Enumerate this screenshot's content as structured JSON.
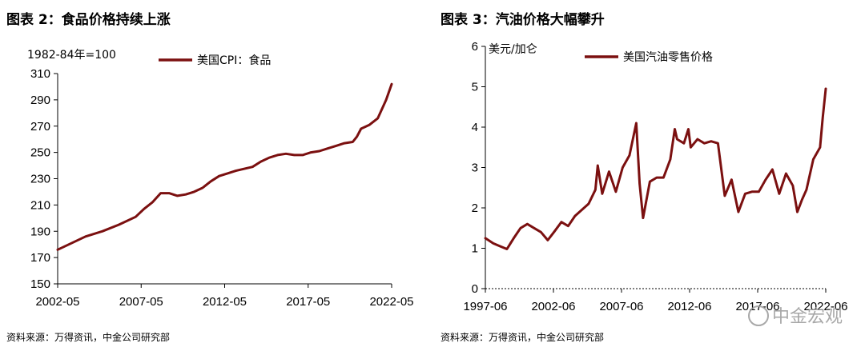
{
  "charts": [
    {
      "title": "图表 2：食品价格持续上涨",
      "source": "资料来源：万得资讯，中金公司研究部",
      "chart_data": {
        "type": "line",
        "unit_label": "1982-84年=100",
        "ylim": [
          150,
          310
        ],
        "yticks": [
          150,
          170,
          190,
          210,
          230,
          250,
          270,
          290,
          310
        ],
        "xlim": [
          2002.33,
          2022.33
        ],
        "xtick_labels": [
          "2002-05",
          "2007-05",
          "2012-05",
          "2017-05",
          "2022-05"
        ],
        "xtick_positions": [
          2002.33,
          2007.33,
          2012.33,
          2017.33,
          2022.33
        ],
        "series": [
          {
            "name": "美国CPI：食品",
            "color": "#7b1010",
            "x": [
              2002.33,
              2003.0,
              2004.0,
              2005.0,
              2006.0,
              2007.0,
              2007.5,
              2008.0,
              2008.5,
              2009.0,
              2009.5,
              2010.0,
              2010.5,
              2011.0,
              2011.5,
              2012.0,
              2012.5,
              2013.0,
              2014.0,
              2014.5,
              2015.0,
              2015.5,
              2016.0,
              2016.5,
              2017.0,
              2017.5,
              2018.0,
              2018.5,
              2019.0,
              2019.5,
              2020.0,
              2020.25,
              2020.5,
              2021.0,
              2021.5,
              2022.0,
              2022.33
            ],
            "y": [
              176,
              180,
              186,
              190,
              195,
              201,
              207,
              212,
              219,
              219,
              217,
              218,
              220,
              223,
              228,
              232,
              234,
              236,
              239,
              243,
              246,
              248,
              249,
              248,
              248,
              250,
              251,
              253,
              255,
              257,
              258,
              262,
              268,
              271,
              276,
              290,
              302
            ]
          }
        ]
      }
    },
    {
      "title": "图表 3：汽油价格大幅攀升",
      "source": "资料来源：万得资讯，中金公司研究部",
      "chart_data": {
        "type": "line",
        "unit_label": "美元/加仑",
        "ylim": [
          0,
          6
        ],
        "yticks": [
          0,
          1,
          2,
          3,
          4,
          5,
          6
        ],
        "xlim": [
          1997.42,
          2022.42
        ],
        "xtick_labels": [
          "1997-06",
          "2002-06",
          "2007-06",
          "2012-06",
          "2017-06",
          "2022-06"
        ],
        "xtick_positions": [
          1997.42,
          2002.42,
          2007.42,
          2012.42,
          2017.42,
          2022.42
        ],
        "series": [
          {
            "name": "美国汽油零售价格",
            "color": "#7b1010",
            "x": [
              1997.42,
              1998.0,
              1998.5,
              1999.0,
              1999.5,
              2000.0,
              2000.5,
              2001.0,
              2001.5,
              2002.0,
              2002.5,
              2003.0,
              2003.5,
              2004.0,
              2004.5,
              2005.0,
              2005.5,
              2005.67,
              2006.0,
              2006.5,
              2007.0,
              2007.5,
              2008.0,
              2008.5,
              2008.75,
              2009.0,
              2009.5,
              2010.0,
              2010.5,
              2011.0,
              2011.33,
              2011.5,
              2012.0,
              2012.33,
              2012.5,
              2013.0,
              2013.5,
              2014.0,
              2014.5,
              2015.0,
              2015.5,
              2016.0,
              2016.5,
              2017.0,
              2017.5,
              2018.0,
              2018.5,
              2019.0,
              2019.5,
              2020.0,
              2020.33,
              2020.67,
              2021.0,
              2021.5,
              2022.0,
              2022.2,
              2022.42
            ],
            "y": [
              1.25,
              1.12,
              1.05,
              0.98,
              1.25,
              1.5,
              1.6,
              1.5,
              1.4,
              1.2,
              1.42,
              1.65,
              1.55,
              1.8,
              1.95,
              2.1,
              2.45,
              3.05,
              2.35,
              2.9,
              2.4,
              3.0,
              3.3,
              4.1,
              2.6,
              1.75,
              2.65,
              2.75,
              2.75,
              3.2,
              3.95,
              3.7,
              3.6,
              3.95,
              3.5,
              3.7,
              3.6,
              3.65,
              3.6,
              2.3,
              2.7,
              1.9,
              2.35,
              2.4,
              2.4,
              2.7,
              2.95,
              2.35,
              2.85,
              2.55,
              1.9,
              2.2,
              2.45,
              3.2,
              3.5,
              4.25,
              4.95
            ]
          }
        ]
      }
    }
  ],
  "watermark": "中金宏观"
}
